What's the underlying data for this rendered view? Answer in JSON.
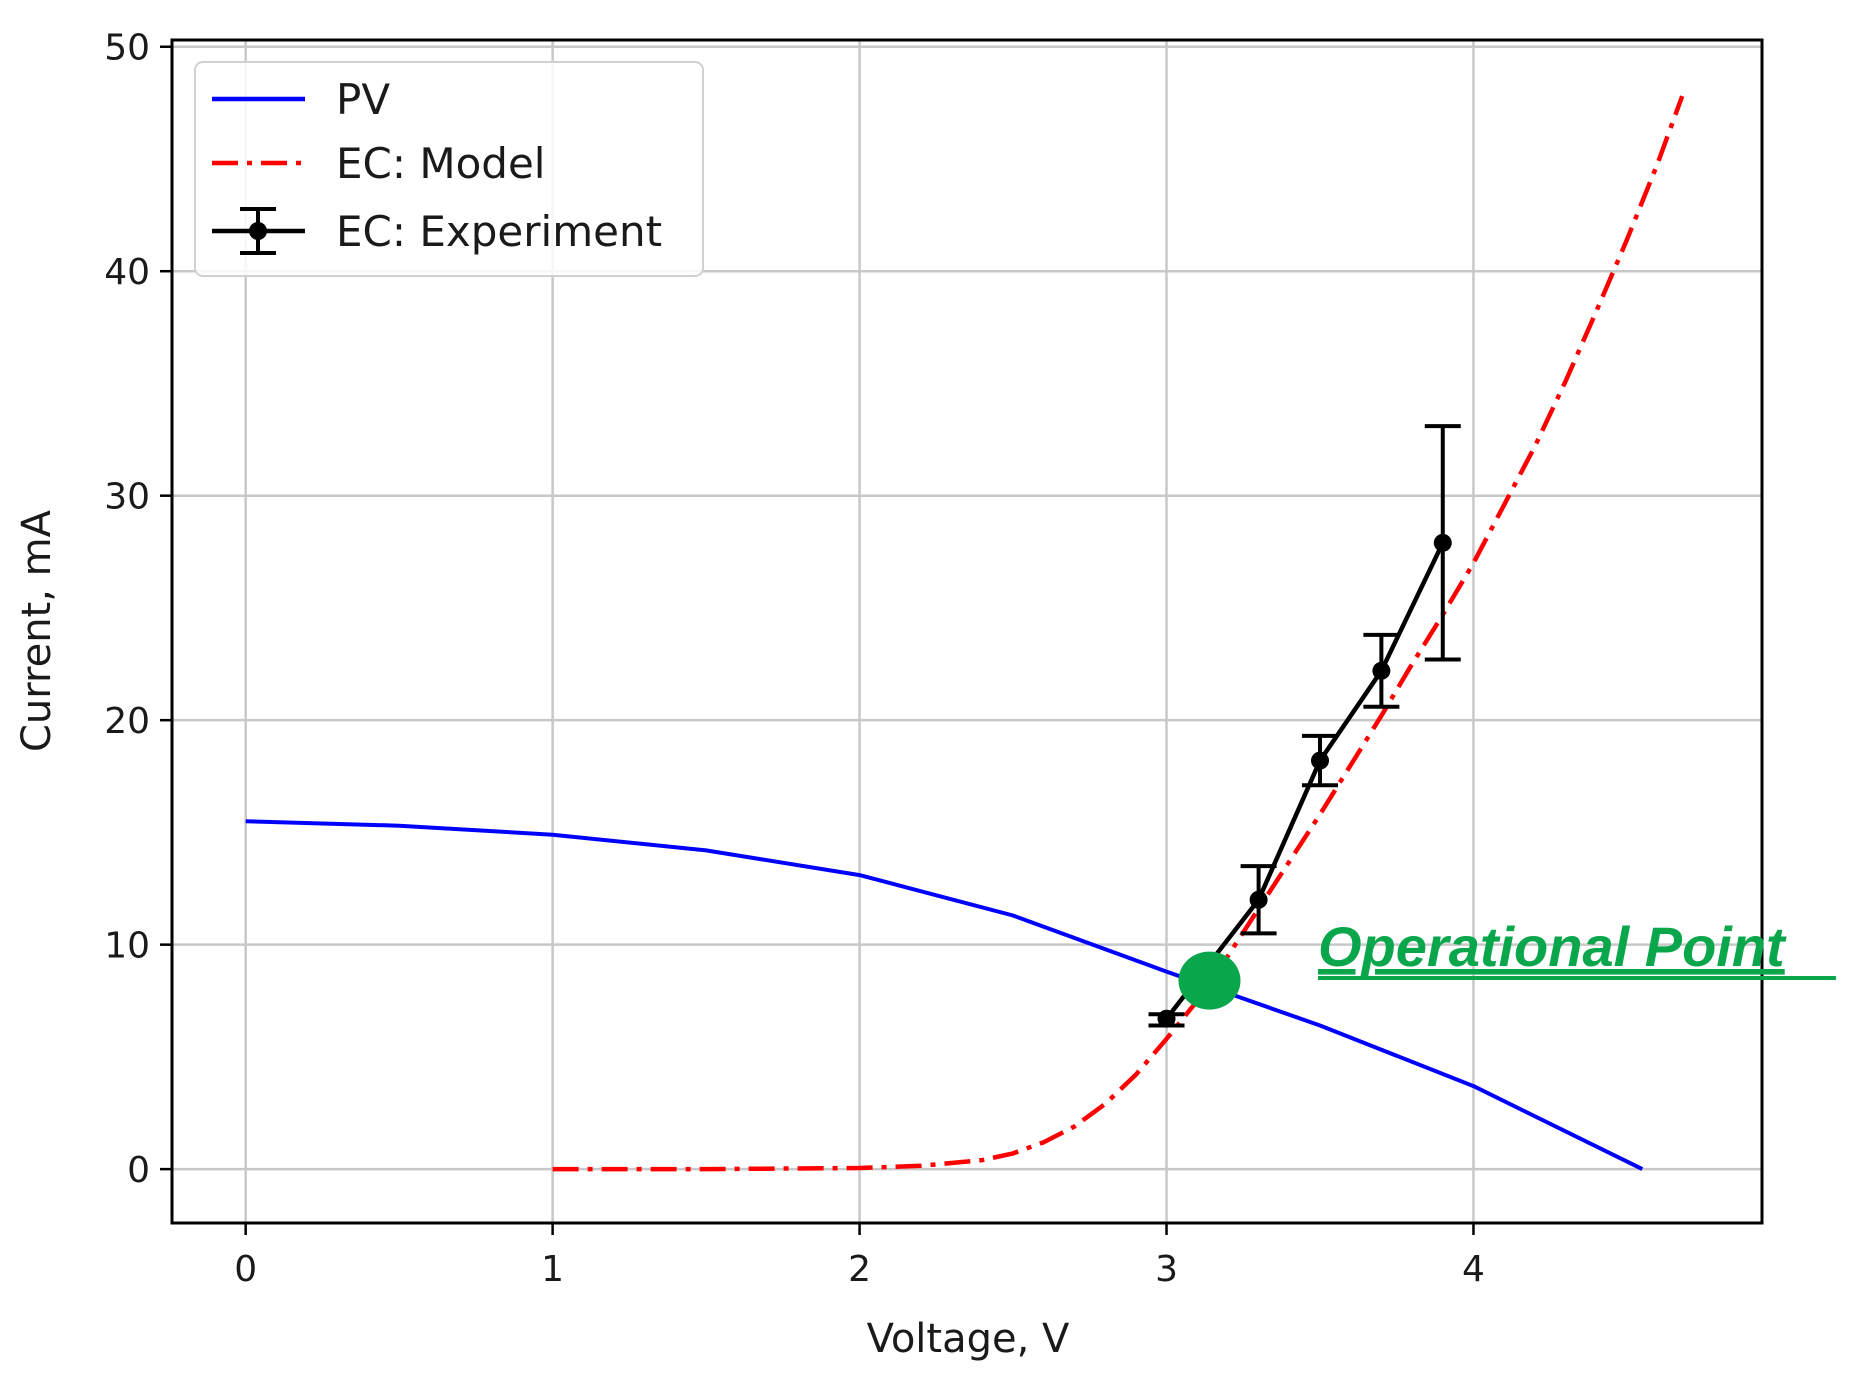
{
  "chart_data": {
    "type": "line",
    "title": "",
    "xlabel": "Voltage, V",
    "ylabel": "Current, mA",
    "xlim": [
      -0.24,
      4.94
    ],
    "ylim": [
      -2.4,
      50.3
    ],
    "xticks": [
      0,
      1,
      2,
      3,
      4
    ],
    "yticks": [
      0,
      10,
      20,
      30,
      40,
      50
    ],
    "grid": true,
    "legend": {
      "position": "top-left"
    },
    "series": [
      {
        "name": "PV",
        "style": "solid",
        "color": "#0000ff",
        "x": [
          0,
          0.5,
          1.0,
          1.5,
          2.0,
          2.5,
          3.0,
          3.5,
          4.0,
          4.55
        ],
        "y": [
          15.5,
          15.3,
          14.9,
          14.2,
          13.1,
          11.3,
          8.8,
          6.4,
          3.7,
          0.0
        ]
      },
      {
        "name": "EC: Model",
        "style": "dashdot",
        "color": "#ff0000",
        "x": [
          1.0,
          1.5,
          2.0,
          2.2,
          2.4,
          2.5,
          2.6,
          2.7,
          2.8,
          2.9,
          3.0,
          3.1,
          3.2,
          3.3,
          3.4,
          3.5,
          3.6,
          3.7,
          3.8,
          3.9,
          4.0,
          4.1,
          4.2,
          4.3,
          4.4,
          4.5,
          4.6,
          4.68
        ],
        "y": [
          0,
          0,
          0.05,
          0.15,
          0.4,
          0.7,
          1.2,
          1.9,
          2.9,
          4.2,
          5.8,
          7.5,
          9.5,
          11.6,
          13.7,
          15.8,
          18.0,
          20.2,
          22.5,
          24.7,
          27.0,
          29.6,
          32.2,
          35.1,
          38.2,
          41.4,
          44.8,
          47.8
        ]
      },
      {
        "name": "EC: Experiment",
        "style": "solid-marker",
        "color": "#000000",
        "x": [
          3.0,
          3.3,
          3.5,
          3.7,
          3.9
        ],
        "y": [
          6.7,
          12.0,
          18.2,
          22.2,
          27.9
        ],
        "yerr_low": [
          6.4,
          10.5,
          17.1,
          20.6,
          22.7
        ],
        "yerr_high": [
          6.9,
          13.5,
          19.3,
          23.8,
          33.1
        ]
      }
    ],
    "annotations": [
      {
        "text": "Operational Point",
        "x": 3.14,
        "y": 8.4,
        "color": "#0aa64b"
      }
    ]
  }
}
